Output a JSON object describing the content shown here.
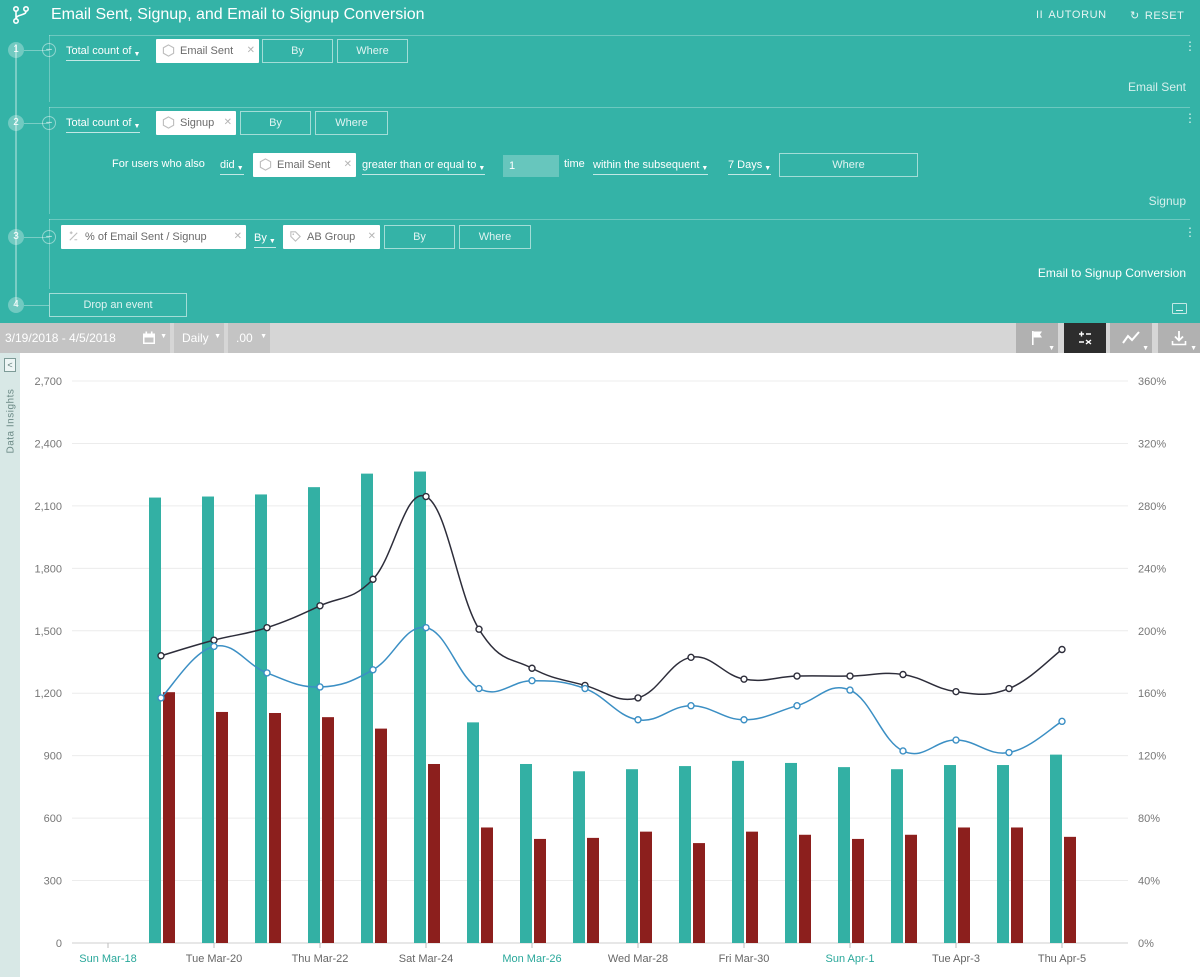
{
  "builder": {
    "title": "Email Sent, Signup, and Email to Signup Conversion",
    "autorun_label": "AUTORUN",
    "reset_label": "RESET",
    "pause_glyph": "II",
    "reset_glyph": "↻",
    "steps": [
      {
        "number": "1",
        "count_label": "Total count of",
        "event_chip": "Email Sent",
        "by_label": "By",
        "where_label": "Where",
        "series_label": "Email Sent"
      },
      {
        "number": "2",
        "count_label": "Total count of",
        "event_chip": "Signup",
        "by_label": "By",
        "where_label": "Where",
        "series_label": "Signup",
        "filter": {
          "prefix": "For users who also",
          "did_label": "did",
          "event_chip": "Email Sent",
          "comparator": "greater than or equal to",
          "count_value": "1",
          "time_label": "time",
          "window_label": "within the subsequent",
          "window_value": "7 Days",
          "where_label": "Where"
        }
      },
      {
        "number": "3",
        "formula_chip": "% of Email Sent / Signup",
        "by_prefix": "By",
        "group_chip": "AB Group",
        "by_label": "By",
        "where_label": "Where",
        "series_label": "Email to Signup Conversion"
      },
      {
        "number": "4",
        "drop_label": "Drop an event"
      }
    ]
  },
  "toolbar": {
    "date_range": "3/19/2018 - 4/5/2018",
    "interval": "Daily",
    "decimals": ".00",
    "icons": [
      "flag-icon",
      "formula-icon",
      "line-chart-icon",
      "download-icon"
    ]
  },
  "side_panel": {
    "label": "Data Insights",
    "toggle_glyph": "<"
  },
  "colors": {
    "email_sent": "#33b0a4",
    "signup": "#8c1f1d",
    "conversion_a": "#2d2d3a",
    "conversion_b": "#3b8fc4",
    "builder_bg": "#34b3a7"
  },
  "chart_data": {
    "type": "bar",
    "categories": [
      "Mar-19",
      "Mar-20",
      "Mar-21",
      "Mar-22",
      "Mar-23",
      "Mar-24",
      "Mar-25",
      "Mar-26",
      "Mar-27",
      "Mar-28",
      "Mar-29",
      "Mar-30",
      "Mar-31",
      "Apr-1",
      "Apr-2",
      "Apr-3",
      "Apr-4",
      "Apr-5"
    ],
    "x_tick_labels": [
      "Sun Mar-18",
      "Tue Mar-20",
      "Thu Mar-22",
      "Sat Mar-24",
      "Mon Mar-26",
      "Wed Mar-28",
      "Fri Mar-30",
      "Sun Apr-1",
      "Tue Apr-3",
      "Thu Apr-5"
    ],
    "x_tick_highlight": [
      true,
      false,
      false,
      false,
      true,
      false,
      false,
      true,
      false,
      false
    ],
    "y_left_ticks": [
      "0",
      "300",
      "600",
      "900",
      "1,200",
      "1,500",
      "1,800",
      "2,100",
      "2,400",
      "2,700"
    ],
    "y_right_ticks": [
      "0%",
      "40%",
      "80%",
      "120%",
      "160%",
      "200%",
      "240%",
      "280%",
      "320%",
      "360%"
    ],
    "ylim_left": [
      0,
      2700
    ],
    "ylim_right": [
      0,
      360
    ],
    "series": [
      {
        "name": "Email Sent",
        "type": "bar",
        "axis": "left",
        "values": [
          2140,
          2145,
          2155,
          2190,
          2255,
          2265,
          1060,
          860,
          825,
          835,
          850,
          875,
          865,
          845,
          835,
          855,
          855,
          905
        ]
      },
      {
        "name": "Signup",
        "type": "bar",
        "axis": "left",
        "values": [
          1205,
          1110,
          1105,
          1085,
          1030,
          860,
          555,
          500,
          505,
          535,
          480,
          535,
          520,
          500,
          520,
          555,
          555,
          510
        ]
      },
      {
        "type": "line",
        "axis": "right",
        "values": [
          184,
          194,
          202,
          216,
          233,
          286,
          201,
          176,
          165,
          157,
          183,
          169,
          171,
          171,
          172,
          161,
          163,
          188
        ]
      },
      {
        "type": "line",
        "axis": "right",
        "values": [
          157,
          190,
          173,
          164,
          175,
          202,
          163,
          168,
          163,
          143,
          152,
          143,
          152,
          162,
          123,
          130,
          122,
          142
        ]
      }
    ],
    "grid": true
  }
}
